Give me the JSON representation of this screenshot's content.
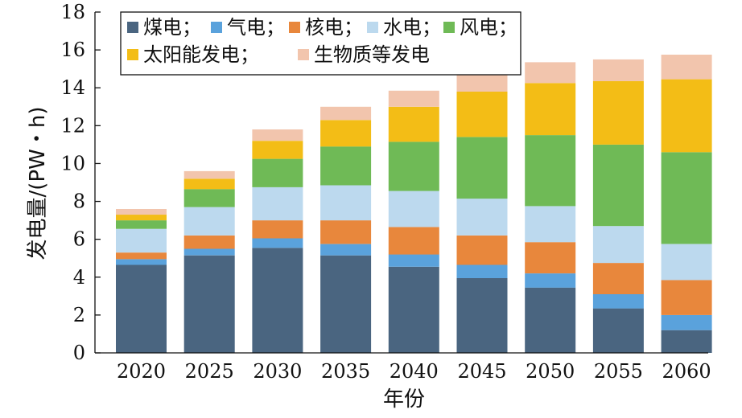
{
  "chart_data": {
    "type": "bar",
    "stacked": true,
    "xlabel": "年份",
    "ylabel": "发电量/(PW・h)",
    "ylim": [
      0,
      18
    ],
    "yticks": [
      0,
      2,
      4,
      6,
      8,
      10,
      12,
      14,
      16,
      18
    ],
    "categories": [
      "2020",
      "2025",
      "2030",
      "2035",
      "2040",
      "2045",
      "2050",
      "2055",
      "2060"
    ],
    "legend_position": "top-left",
    "grid": false,
    "series": [
      {
        "name": "煤电",
        "legend_label": "煤电；",
        "color": "#4a6580",
        "values": [
          4.65,
          5.15,
          5.55,
          5.15,
          4.55,
          3.95,
          3.45,
          2.35,
          1.2
        ]
      },
      {
        "name": "气电",
        "legend_label": "气电；",
        "color": "#5aa2dc",
        "values": [
          0.3,
          0.35,
          0.5,
          0.6,
          0.65,
          0.7,
          0.75,
          0.75,
          0.8
        ]
      },
      {
        "name": "核电",
        "legend_label": "核电；",
        "color": "#e8873c",
        "values": [
          0.35,
          0.7,
          0.95,
          1.25,
          1.45,
          1.55,
          1.65,
          1.65,
          1.85
        ]
      },
      {
        "name": "水电",
        "legend_label": "水电；",
        "color": "#bcd9ee",
        "values": [
          1.25,
          1.5,
          1.75,
          1.85,
          1.9,
          1.95,
          1.9,
          1.95,
          1.9
        ]
      },
      {
        "name": "风电",
        "legend_label": "风电；",
        "color": "#6fba56",
        "values": [
          0.45,
          0.95,
          1.5,
          2.05,
          2.6,
          3.25,
          3.75,
          4.3,
          4.85
        ]
      },
      {
        "name": "太阳能发电",
        "legend_label": "太阳能发电；",
        "color": "#f3bd16",
        "values": [
          0.3,
          0.55,
          0.95,
          1.4,
          1.85,
          2.4,
          2.75,
          3.35,
          3.85
        ]
      },
      {
        "name": "生物质等发电",
        "legend_label": "生物质等发电",
        "color": "#f2c5ad",
        "values": [
          0.3,
          0.4,
          0.6,
          0.7,
          0.85,
          0.95,
          1.1,
          1.15,
          1.3
        ]
      }
    ]
  }
}
